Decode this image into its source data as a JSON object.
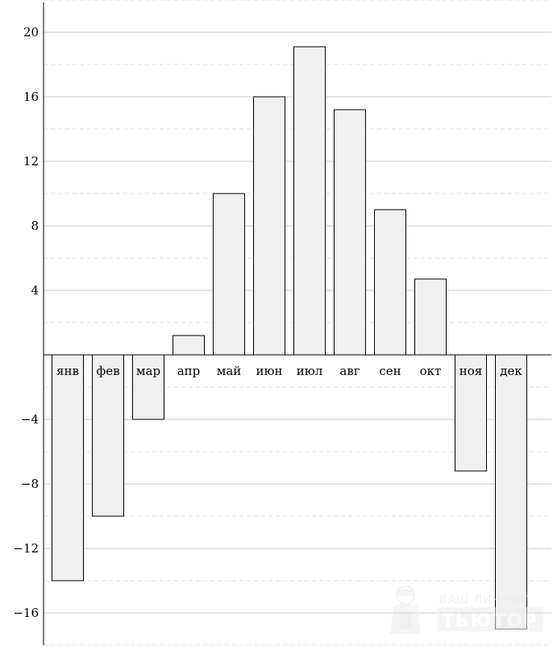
{
  "chart_data": {
    "type": "bar",
    "categories": [
      "янв",
      "фев",
      "мар",
      "апр",
      "май",
      "июн",
      "июл",
      "авг",
      "сен",
      "окт",
      "ноя",
      "дек"
    ],
    "values": [
      -14,
      -10,
      -4,
      1.2,
      10,
      16,
      19.1,
      15.2,
      9,
      4.7,
      -7.2,
      -17
    ],
    "title": "",
    "xlabel": "",
    "ylabel": "",
    "ylim": [
      -18,
      22
    ],
    "y_ticks": [
      -16,
      -12,
      -8,
      -4,
      4,
      8,
      12,
      16,
      20
    ],
    "y_tick_labels": [
      "−16",
      "−12",
      "−8",
      "−4",
      "4",
      "8",
      "12",
      "16",
      "20"
    ],
    "grid": true,
    "bar_fill": "#f0f0f0",
    "bar_stroke": "#000000",
    "grid_major_color": "#c8c8c8",
    "grid_minor_color": "#dcdcdc"
  },
  "watermark": {
    "line1": "ВАШ ЛИЧНЫЙ",
    "line2": "ТЬЮТОР",
    "icon": "tutor-figure-icon"
  }
}
